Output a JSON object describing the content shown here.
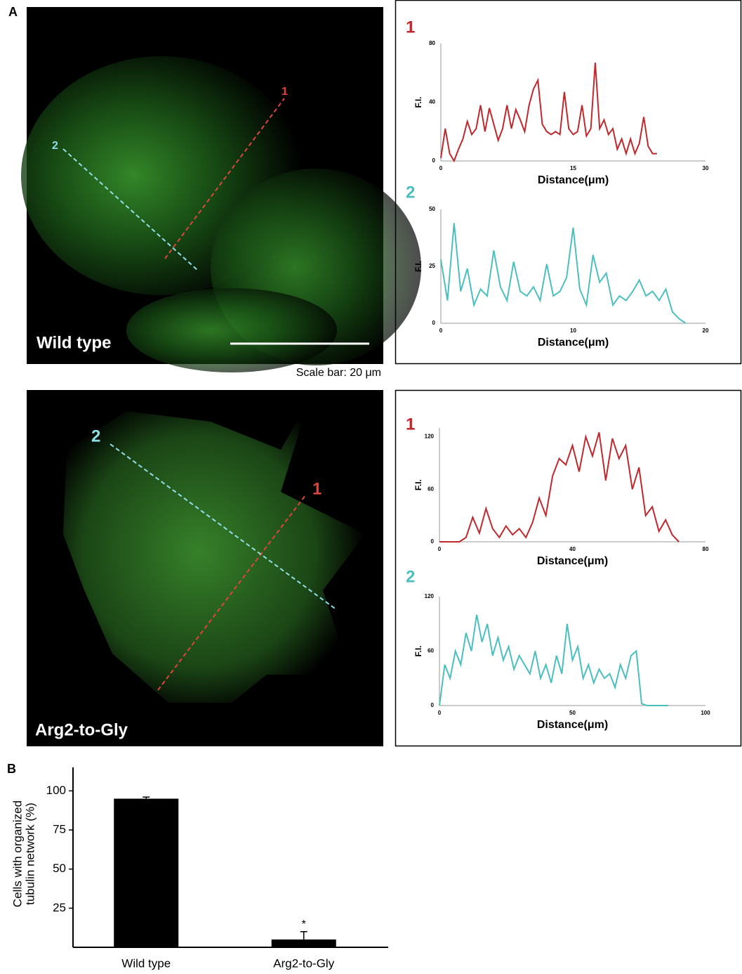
{
  "panel_labels": [
    "A",
    "B"
  ],
  "images": [
    {
      "label": "Wild type",
      "line_labels": [
        "1",
        "2"
      ]
    },
    {
      "label": "Arg2-to-Gly",
      "line_labels": [
        "1",
        "2"
      ]
    }
  ],
  "scale_bar": "Scale bar: 20 μm",
  "chart_data": [
    {
      "type": "line",
      "title": "1",
      "xlabel": "Distance(μm)",
      "ylabel": "F.I.",
      "color": "#c0282d",
      "x": [
        0,
        0.5,
        1,
        1.5,
        2,
        2.5,
        3,
        3.5,
        4,
        4.5,
        5,
        5.5,
        6,
        6.5,
        7,
        7.5,
        8,
        8.5,
        9,
        9.5,
        10,
        10.5,
        11,
        11.5,
        12,
        12.5,
        13,
        13.5,
        14,
        14.5,
        15,
        15.5,
        16,
        16.5,
        17,
        17.5,
        18,
        18.5,
        19,
        19.5,
        20,
        20.5,
        21,
        21.5,
        22,
        22.5,
        23,
        23.5,
        24,
        24.5
      ],
      "values": [
        2,
        22,
        5,
        0,
        8,
        15,
        27,
        18,
        22,
        38,
        20,
        36,
        25,
        14,
        22,
        38,
        22,
        35,
        28,
        20,
        38,
        49,
        55,
        25,
        20,
        18,
        20,
        18,
        47,
        22,
        18,
        20,
        38,
        17,
        22,
        67,
        22,
        28,
        18,
        22,
        8,
        15,
        5,
        15,
        5,
        12,
        30,
        10,
        5,
        5
      ],
      "xlim": [
        0,
        30
      ],
      "xticks": [
        0,
        15,
        30
      ],
      "ylim": [
        0,
        80
      ],
      "yticks": [
        0,
        40,
        80
      ]
    },
    {
      "type": "line",
      "title": "2",
      "xlabel": "Distance(μm)",
      "ylabel": "F.I.",
      "color": "#4bbfbf",
      "x": [
        0,
        0.5,
        1,
        1.5,
        2,
        2.5,
        3,
        3.5,
        4,
        4.5,
        5,
        5.5,
        6,
        6.5,
        7,
        7.5,
        8,
        8.5,
        9,
        9.5,
        10,
        10.5,
        11,
        11.5,
        12,
        12.5,
        13,
        13.5,
        14,
        14.5,
        15,
        15.5,
        16,
        16.5,
        17,
        17.5,
        18,
        18.5
      ],
      "values": [
        28,
        10,
        44,
        14,
        24,
        8,
        15,
        12,
        32,
        16,
        10,
        27,
        14,
        12,
        16,
        10,
        26,
        12,
        14,
        20,
        42,
        15,
        8,
        30,
        18,
        22,
        8,
        12,
        10,
        14,
        19,
        12,
        14,
        10,
        15,
        5,
        2,
        0
      ],
      "xlim": [
        0,
        20
      ],
      "xticks": [
        0,
        10,
        20
      ],
      "ylim": [
        0,
        50
      ],
      "yticks": [
        0,
        25,
        50
      ]
    },
    {
      "type": "line",
      "title": "1",
      "xlabel": "Distance(μm)",
      "ylabel": "F.I.",
      "color": "#c0282d",
      "x": [
        0,
        2,
        4,
        6,
        8,
        10,
        12,
        14,
        16,
        18,
        20,
        22,
        24,
        26,
        28,
        30,
        32,
        34,
        36,
        38,
        40,
        42,
        44,
        46,
        48,
        50,
        52,
        54,
        56,
        58,
        60,
        62,
        64,
        66,
        68,
        70,
        72
      ],
      "values": [
        0,
        0,
        0,
        0,
        5,
        28,
        10,
        38,
        15,
        5,
        18,
        8,
        15,
        5,
        22,
        50,
        30,
        75,
        95,
        88,
        110,
        80,
        120,
        98,
        125,
        70,
        118,
        95,
        110,
        60,
        85,
        30,
        40,
        12,
        25,
        8,
        0
      ],
      "xlim": [
        0,
        80
      ],
      "xticks": [
        0,
        40,
        80
      ],
      "ylim": [
        0,
        130
      ],
      "yticks": [
        0,
        60,
        120
      ]
    },
    {
      "type": "line",
      "title": "2",
      "xlabel": "Distance(μm)",
      "ylabel": "F.I.",
      "color": "#4bbfbf",
      "x": [
        0,
        2,
        4,
        6,
        8,
        10,
        12,
        14,
        16,
        18,
        20,
        22,
        24,
        26,
        28,
        30,
        32,
        34,
        36,
        38,
        40,
        42,
        44,
        46,
        48,
        50,
        52,
        54,
        56,
        58,
        60,
        62,
        64,
        66,
        68,
        70,
        72,
        74,
        76,
        78,
        80,
        82,
        84,
        86
      ],
      "values": [
        0,
        45,
        30,
        60,
        45,
        80,
        60,
        100,
        70,
        90,
        55,
        75,
        50,
        65,
        40,
        55,
        45,
        35,
        60,
        30,
        45,
        25,
        55,
        35,
        90,
        50,
        65,
        30,
        45,
        25,
        40,
        30,
        35,
        20,
        45,
        30,
        55,
        60,
        2,
        0,
        0,
        0,
        0,
        0
      ],
      "xlim": [
        0,
        100
      ],
      "xticks": [
        0,
        50,
        100
      ],
      "ylim": [
        0,
        120
      ],
      "yticks": [
        0,
        60,
        120
      ]
    },
    {
      "type": "bar",
      "ylabel": [
        "Cells with organized",
        "tubulin network (%)"
      ],
      "categories": [
        "Wild type",
        "Arg2-to-Gly"
      ],
      "values": [
        95,
        5
      ],
      "errors": [
        1,
        5
      ],
      "color": "#000000",
      "annotation": "*",
      "ylim": [
        0,
        115
      ],
      "yticks": [
        25,
        50,
        75,
        100
      ]
    }
  ]
}
